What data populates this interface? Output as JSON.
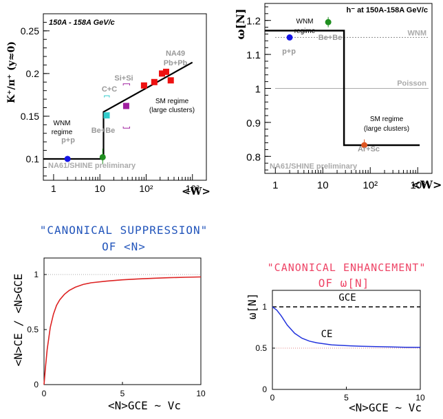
{
  "chart_data": [
    {
      "type": "scatter",
      "title": "150A - 158A GeV/c",
      "xlabel": "<W>",
      "ylabel": "K⁺/π⁺ (y≈0)",
      "xscale": "log",
      "xlim": [
        0.6,
        2000
      ],
      "ylim": [
        0.075,
        0.27
      ],
      "x_ticks": [
        "1",
        "10",
        "10²",
        "10³"
      ],
      "y_ticks": [
        "0.1",
        "0.15",
        "0.2",
        "0.25"
      ],
      "watermark": "NA61/SHINE preliminary",
      "annotations": [
        {
          "text": "WNM",
          "color": "#000000"
        },
        {
          "text": "regime",
          "color": "#000000"
        },
        {
          "text": "p+p",
          "color": "#999999"
        },
        {
          "text": "Be+Be",
          "color": "#999999"
        },
        {
          "text": "C+C",
          "color": "#999999"
        },
        {
          "text": "Si+Si",
          "color": "#999999"
        },
        {
          "text": "NA49",
          "color": "#999999"
        },
        {
          "text": "Pb+Pb",
          "color": "#999999"
        },
        {
          "text": "SM regime",
          "color": "#000000"
        },
        {
          "text": "(large clusters)",
          "color": "#000000"
        }
      ],
      "points": [
        {
          "x": 2,
          "y": 0.1,
          "color": "#1515e6",
          "shape": "circle"
        },
        {
          "x": 11.5,
          "y": 0.102,
          "color": "#1f8f1f",
          "shape": "circle"
        },
        {
          "x": 14,
          "y": 0.151,
          "color": "#33cccc",
          "shape": "square"
        },
        {
          "x": 37,
          "y": 0.162,
          "color": "#a020a0",
          "shape": "square"
        },
        {
          "x": 90,
          "y": 0.186,
          "color": "#ee1111",
          "shape": "square"
        },
        {
          "x": 150,
          "y": 0.19,
          "color": "#ee1111",
          "shape": "square"
        },
        {
          "x": 220,
          "y": 0.2,
          "color": "#ee1111",
          "shape": "square"
        },
        {
          "x": 270,
          "y": 0.202,
          "color": "#ee1111",
          "shape": "square"
        },
        {
          "x": 340,
          "y": 0.192,
          "color": "#ee1111",
          "shape": "square"
        }
      ],
      "model_line": [
        [
          0.6,
          0.1
        ],
        [
          12,
          0.1
        ],
        [
          12,
          0.155
        ],
        [
          1000,
          0.213
        ]
      ]
    },
    {
      "type": "scatter",
      "title": "h⁻ at 150A-158A GeV/c",
      "xlabel": "<W>",
      "ylabel": "ω[N]",
      "xscale": "log",
      "xlim": [
        0.6,
        2000
      ],
      "ylim": [
        0.75,
        1.25
      ],
      "x_ticks": [
        "1",
        "10",
        "10²",
        "10³"
      ],
      "y_ticks": [
        "0.8",
        "0.9",
        "1",
        "1.1",
        "1.2"
      ],
      "watermark": "NA61/SHINE preliminary",
      "reference_lines": [
        {
          "label": "WNM",
          "y": 1.15,
          "style": "dotted"
        },
        {
          "label": "Poisson",
          "y": 1.0,
          "style": "solid"
        }
      ],
      "annotations": [
        {
          "text": "WNM",
          "color": "#000000"
        },
        {
          "text": "regime",
          "color": "#000000"
        },
        {
          "text": "p+p",
          "color": "#999999"
        },
        {
          "text": "Be+Be",
          "color": "#999999"
        },
        {
          "text": "SM regime",
          "color": "#000000"
        },
        {
          "text": "(large clusters)",
          "color": "#000000"
        },
        {
          "text": "Ar+Sc",
          "color": "#999999"
        }
      ],
      "points": [
        {
          "x": 2,
          "y": 1.15,
          "color": "#1515e6"
        },
        {
          "x": 13,
          "y": 1.195,
          "color": "#1f8f1f"
        },
        {
          "x": 75,
          "y": 0.833,
          "color": "#dd5522"
        }
      ],
      "model_line": [
        [
          0.6,
          1.17
        ],
        [
          28,
          1.17
        ],
        [
          28,
          0.833
        ],
        [
          1100,
          0.833
        ]
      ]
    },
    {
      "type": "line",
      "heading": [
        "\"CANONICAL SUPPRESSION\"",
        "OF <N>"
      ],
      "xlabel": "<N>GCE ~ Vc",
      "ylabel": "<N>CE / <N>GCE",
      "xlim": [
        0,
        10
      ],
      "ylim": [
        0,
        1.15
      ],
      "x_ticks": [
        "0",
        "5",
        "10"
      ],
      "y_ticks": [
        "0",
        "0.5",
        "1"
      ],
      "series": [
        {
          "values_x": [
            0,
            0.1,
            0.2,
            0.4,
            0.6,
            0.8,
            1,
            1.3,
            1.6,
            2,
            2.5,
            3,
            4,
            5,
            6,
            7,
            8,
            9,
            10
          ],
          "values_y": [
            0,
            0.17,
            0.32,
            0.52,
            0.64,
            0.72,
            0.77,
            0.82,
            0.855,
            0.885,
            0.91,
            0.925,
            0.94,
            0.952,
            0.96,
            0.966,
            0.971,
            0.975,
            0.978
          ],
          "color": "#dd2222"
        }
      ],
      "reference_lines": [
        {
          "y": 1,
          "style": "dotted"
        }
      ]
    },
    {
      "type": "line",
      "heading": [
        "\"CANONICAL ENHANCEMENT\"",
        "OF ω[N]"
      ],
      "xlabel": "<N>GCE ~ Vc",
      "ylabel": "ω[N]",
      "xlim": [
        0,
        10
      ],
      "ylim": [
        0,
        1.2
      ],
      "x_ticks": [
        "0",
        "5",
        "10"
      ],
      "y_ticks": [
        "0",
        "0.5",
        "1"
      ],
      "series": [
        {
          "name": "CE",
          "values_x": [
            0,
            0.3,
            0.6,
            1,
            1.5,
            2,
            2.5,
            3,
            4,
            5,
            6,
            7,
            8,
            9,
            10
          ],
          "values_y": [
            1.0,
            0.96,
            0.89,
            0.78,
            0.68,
            0.62,
            0.585,
            0.565,
            0.54,
            0.53,
            0.523,
            0.518,
            0.514,
            0.511,
            0.509
          ],
          "color": "#2233dd"
        },
        {
          "name": "GCE",
          "values_x": [
            0,
            10
          ],
          "values_y": [
            1,
            1
          ],
          "color": "#000000",
          "style": "dashed"
        }
      ],
      "reference_lines": [
        {
          "y": 0.5,
          "style": "dotted",
          "color": "#e08080"
        }
      ]
    }
  ]
}
